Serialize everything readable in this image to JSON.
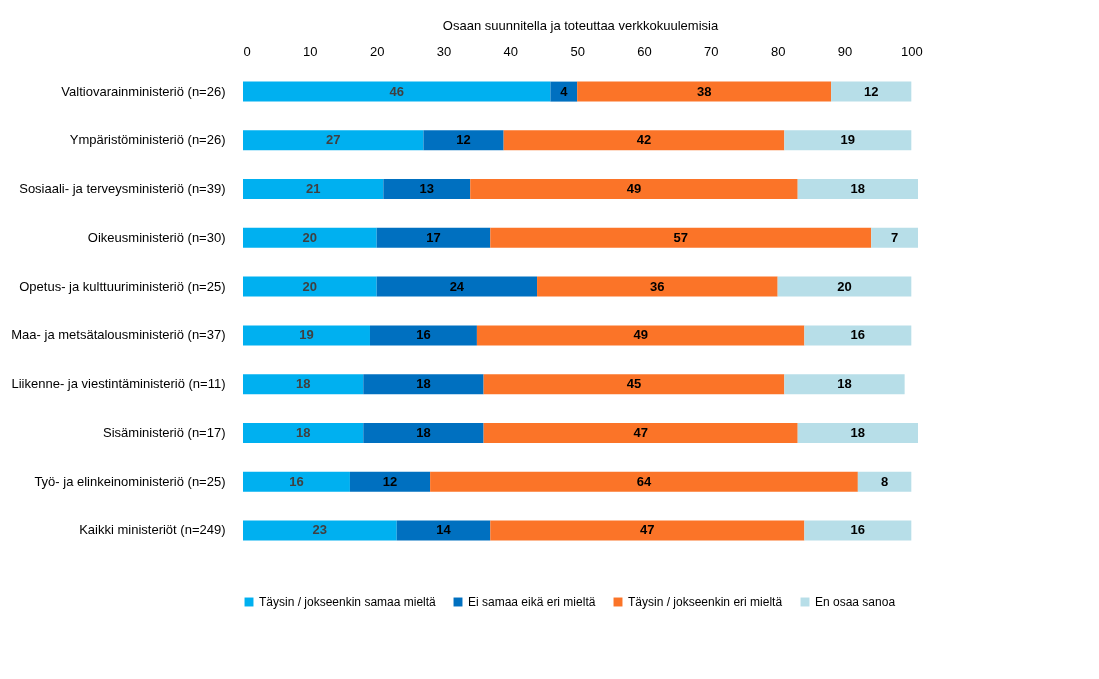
{
  "chart_data": {
    "type": "bar",
    "orientation": "horizontal",
    "stacked": true,
    "title": "Osaan suunnitella ja toteuttaa verkkokuulemisia",
    "categories": [
      "Valtiovarainministeriö (n=26)",
      "Ympäristöministeriö (n=26)",
      "Sosiaali- ja terveysministeriö (n=39)",
      "Oikeusministeriö (n=30)",
      "Opetus- ja kulttuuriministeriö (n=25)",
      "Maa- ja metsätalousministeriö (n=37)",
      "Liikenne- ja viestintäministeriö (n=11)",
      "Sisäministeriö (n=17)",
      "Työ- ja elinkeinoministeriö (n=25)",
      "Kaikki ministeriöt (n=249)"
    ],
    "series": [
      {
        "name": "Täysin / jokseenkin samaa mieltä",
        "color": "#00b0f0",
        "values": [
          46,
          27,
          21,
          20,
          20,
          19,
          18,
          18,
          16,
          23
        ]
      },
      {
        "name": "Ei samaa eikä eri mieltä",
        "color": "#0070c0",
        "values": [
          4,
          12,
          13,
          17,
          24,
          16,
          18,
          18,
          12,
          14
        ]
      },
      {
        "name": "Täysin / jokseenkin eri mieltä",
        "color": "#fb7428",
        "values": [
          38,
          42,
          49,
          57,
          36,
          49,
          45,
          47,
          64,
          47
        ]
      },
      {
        "name": "En osaa sanoa",
        "color": "#b7dee8",
        "values": [
          12,
          19,
          18,
          7,
          20,
          16,
          18,
          18,
          8,
          16
        ]
      }
    ],
    "xlim": [
      0,
      101
    ],
    "xticks": [
      0,
      10,
      20,
      30,
      40,
      50,
      60,
      70,
      80,
      90,
      100
    ],
    "grid": false,
    "legend": "bottom",
    "data_labels": true
  }
}
